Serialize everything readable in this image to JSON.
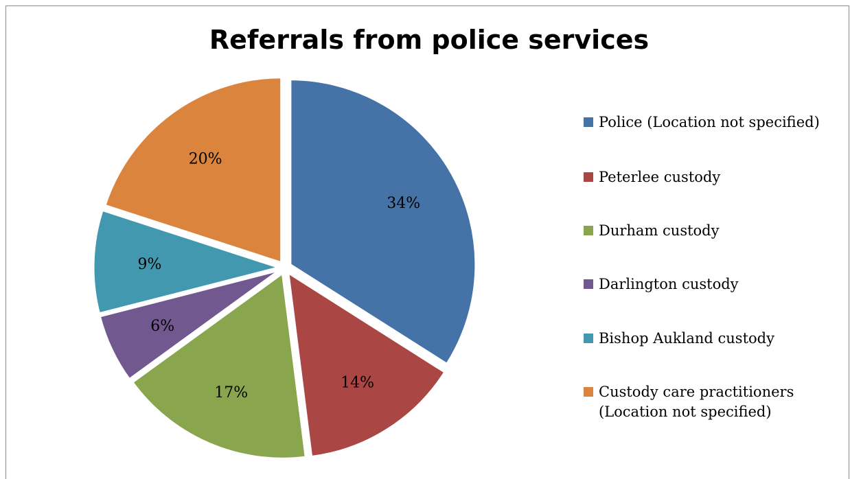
{
  "chart_data": {
    "type": "pie",
    "title": "Referrals from police services",
    "legend_position": "right",
    "slices": [
      {
        "name": "Police (Location not specified)",
        "value": 34,
        "label": "34%",
        "color": "#4572a7"
      },
      {
        "name": "Peterlee custody",
        "value": 14,
        "label": "14%",
        "color": "#aa4643"
      },
      {
        "name": "Durham custody",
        "value": 17,
        "label": "17%",
        "color": "#89a54e"
      },
      {
        "name": "Darlington custody",
        "value": 6,
        "label": "6%",
        "color": "#71588f"
      },
      {
        "name": "Bishop Aukland custody",
        "value": 9,
        "label": "9%",
        "color": "#4198af"
      },
      {
        "name": "Custody care practitioners\n(Location not specified)",
        "value": 20,
        "label": "20%",
        "color": "#db843d"
      }
    ]
  }
}
